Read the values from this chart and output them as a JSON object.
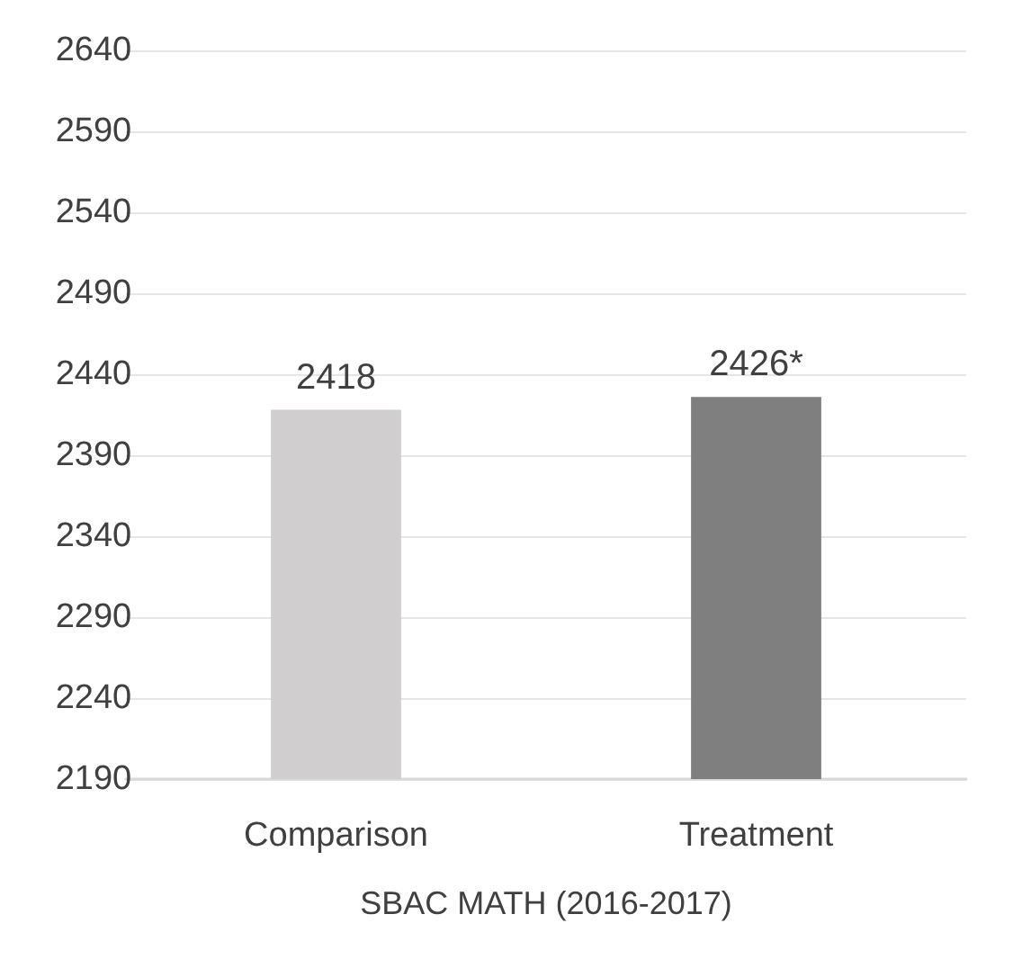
{
  "chart_data": {
    "type": "bar",
    "xlabel": "SBAC MATH (2016-2017)",
    "categories": [
      "Comparison",
      "Treatment"
    ],
    "values": [
      2418,
      2426
    ],
    "colors": [
      "#d0cece",
      "#7f7f7f"
    ],
    "value_labels": [
      "2418",
      "2426*"
    ],
    "ylim": [
      2190,
      2640
    ],
    "yticks": [
      2190,
      2240,
      2290,
      2340,
      2390,
      2440,
      2490,
      2540,
      2590,
      2640
    ],
    "grid": "y"
  }
}
